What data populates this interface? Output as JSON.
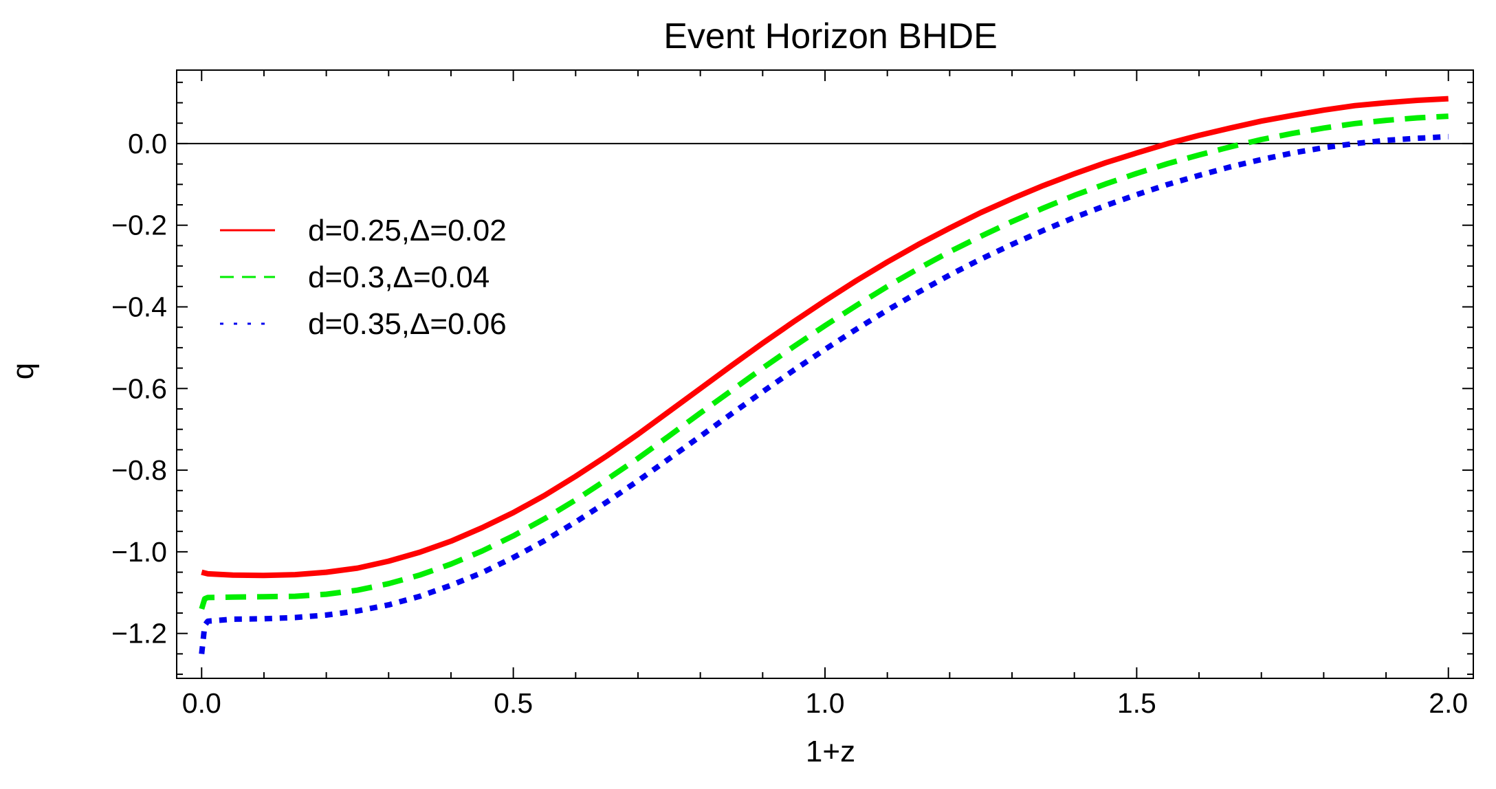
{
  "chart_data": {
    "type": "line",
    "title": "Event Horizon BHDE",
    "xlabel": "1+z",
    "ylabel": "q",
    "xlim": [
      -0.04,
      2.04
    ],
    "ylim": [
      -1.31,
      0.18
    ],
    "xticks": [
      0.0,
      0.5,
      1.0,
      1.5,
      2.0
    ],
    "xtick_labels": [
      "0.0",
      "0.5",
      "1.0",
      "1.5",
      "2.0"
    ],
    "yticks": [
      0.0,
      -0.2,
      -0.4,
      -0.6,
      -0.8,
      -1.0,
      -1.2
    ],
    "ytick_labels": [
      "0.0",
      "−0.2",
      "−0.4",
      "−0.6",
      "−0.8",
      "−1.0",
      "−1.2"
    ],
    "grid": false,
    "frame": true,
    "reference_line": {
      "y": 0.0,
      "color": "#000000"
    },
    "legend_position": "upper-left",
    "x": [
      0.0,
      0.005,
      0.01,
      0.05,
      0.1,
      0.15,
      0.2,
      0.25,
      0.3,
      0.35,
      0.4,
      0.45,
      0.5,
      0.55,
      0.6,
      0.65,
      0.7,
      0.75,
      0.8,
      0.85,
      0.9,
      0.95,
      1.0,
      1.05,
      1.1,
      1.15,
      1.2,
      1.25,
      1.3,
      1.35,
      1.4,
      1.45,
      1.5,
      1.55,
      1.6,
      1.65,
      1.7,
      1.75,
      1.8,
      1.85,
      1.9,
      1.95,
      2.0
    ],
    "series": [
      {
        "name": "d=0.25,Δ=0.02",
        "color": "#ff0000",
        "style": "solid",
        "values": [
          -1.05,
          -1.052,
          -1.054,
          -1.057,
          -1.058,
          -1.056,
          -1.05,
          -1.04,
          -1.023,
          -1.001,
          -0.974,
          -0.941,
          -0.904,
          -0.862,
          -0.815,
          -0.765,
          -0.712,
          -0.656,
          -0.6,
          -0.544,
          -0.489,
          -0.436,
          -0.385,
          -0.336,
          -0.29,
          -0.247,
          -0.207,
          -0.169,
          -0.135,
          -0.103,
          -0.074,
          -0.047,
          -0.023,
          0.0,
          0.02,
          0.038,
          0.055,
          0.069,
          0.082,
          0.093,
          0.1,
          0.106,
          0.11
        ]
      },
      {
        "name": "d=0.3,Δ=0.04",
        "color": "#00ee00",
        "style": "dashed",
        "values": [
          -1.14,
          -1.115,
          -1.112,
          -1.111,
          -1.11,
          -1.109,
          -1.104,
          -1.094,
          -1.078,
          -1.057,
          -1.03,
          -0.998,
          -0.961,
          -0.919,
          -0.873,
          -0.823,
          -0.771,
          -0.716,
          -0.66,
          -0.605,
          -0.55,
          -0.497,
          -0.446,
          -0.397,
          -0.35,
          -0.306,
          -0.265,
          -0.227,
          -0.191,
          -0.158,
          -0.127,
          -0.099,
          -0.073,
          -0.049,
          -0.028,
          -0.008,
          0.01,
          0.025,
          0.038,
          0.049,
          0.057,
          0.063,
          0.067
        ]
      },
      {
        "name": "d=0.35,Δ=0.06",
        "color": "#0000ee",
        "style": "dotted",
        "values": [
          -1.25,
          -1.18,
          -1.17,
          -1.165,
          -1.164,
          -1.161,
          -1.155,
          -1.145,
          -1.13,
          -1.109,
          -1.082,
          -1.051,
          -1.014,
          -0.973,
          -0.927,
          -0.878,
          -0.826,
          -0.772,
          -0.717,
          -0.662,
          -0.608,
          -0.555,
          -0.504,
          -0.455,
          -0.408,
          -0.364,
          -0.322,
          -0.283,
          -0.247,
          -0.213,
          -0.181,
          -0.152,
          -0.125,
          -0.1,
          -0.078,
          -0.057,
          -0.039,
          -0.023,
          -0.01,
          0.0,
          0.008,
          0.013,
          0.017
        ]
      }
    ]
  }
}
